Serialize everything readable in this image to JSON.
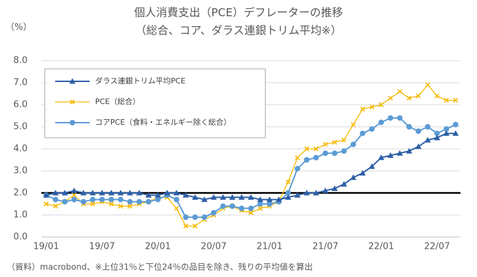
{
  "chart_data": {
    "type": "line",
    "title": "個人消費支出（PCE）デフレーターの推移",
    "subtitle": "（総合、コア、ダラス連銀トリム平均※）",
    "y_label": "（%）",
    "note": "（資料）macrobond、※上位31％と下位24％の品目を除き、残りの平均値を算出",
    "categories": [
      "19/01",
      null,
      null,
      null,
      null,
      null,
      "19/07",
      null,
      null,
      null,
      null,
      null,
      "20/01",
      null,
      null,
      null,
      null,
      null,
      "20/07",
      null,
      null,
      null,
      null,
      null,
      "21/01",
      null,
      null,
      null,
      null,
      null,
      "21/07",
      null,
      null,
      null,
      null,
      null,
      "22/01",
      null,
      null,
      null,
      null,
      null,
      "22/07",
      null,
      null
    ],
    "series": [
      {
        "name": "ダラス連銀トリム平均PCE",
        "color": "#2e5fa8",
        "marker": "triangle",
        "values": [
          1.9,
          2.0,
          2.0,
          2.1,
          2.0,
          2.0,
          2.0,
          2.0,
          2.0,
          2.0,
          2.0,
          1.9,
          1.9,
          2.0,
          2.0,
          1.9,
          1.8,
          1.7,
          1.8,
          1.8,
          1.8,
          1.8,
          1.8,
          1.7,
          1.7,
          1.7,
          1.8,
          1.9,
          2.0,
          2.0,
          2.1,
          2.2,
          2.4,
          2.7,
          2.9,
          3.2,
          3.6,
          3.7,
          3.8,
          3.9,
          4.1,
          4.4,
          4.5,
          4.7,
          4.7
        ]
      },
      {
        "name": "PCE（総合）",
        "color": "#f5b800",
        "marker": "x",
        "values": [
          1.5,
          1.4,
          1.6,
          1.9,
          1.5,
          1.5,
          1.6,
          1.5,
          1.4,
          1.4,
          1.5,
          1.6,
          1.8,
          1.8,
          1.3,
          0.5,
          0.5,
          0.8,
          1.0,
          1.3,
          1.4,
          1.2,
          1.1,
          1.3,
          1.4,
          1.6,
          2.5,
          3.6,
          4.0,
          4.0,
          4.2,
          4.3,
          4.4,
          5.1,
          5.8,
          5.9,
          6.0,
          6.3,
          6.6,
          6.3,
          6.4,
          6.9,
          6.4,
          6.2,
          6.2
        ]
      },
      {
        "name": "コアPCE（食料・エネルギー除く総合）",
        "color": "#5b9bd5",
        "marker": "circle",
        "values": [
          1.9,
          1.7,
          1.6,
          1.7,
          1.6,
          1.7,
          1.7,
          1.7,
          1.7,
          1.6,
          1.6,
          1.6,
          1.7,
          1.9,
          1.7,
          0.9,
          0.9,
          0.9,
          1.1,
          1.4,
          1.4,
          1.3,
          1.3,
          1.5,
          1.5,
          1.6,
          2.0,
          3.1,
          3.5,
          3.6,
          3.8,
          3.8,
          3.9,
          4.2,
          4.7,
          4.9,
          5.2,
          5.4,
          5.4,
          5.0,
          4.8,
          5.0,
          4.7,
          4.9,
          5.1
        ]
      }
    ],
    "reference_line": 2,
    "ylim": [
      0,
      8
    ],
    "yticks": [
      {
        "value": 0,
        "label": "0.0"
      },
      {
        "value": 1,
        "label": "1.0"
      },
      {
        "value": 2,
        "label": "2.0"
      },
      {
        "value": 3,
        "label": "3.0"
      },
      {
        "value": 4,
        "label": "4.0"
      },
      {
        "value": 5,
        "label": "5.0"
      },
      {
        "value": 6,
        "label": "6.0"
      },
      {
        "value": 7,
        "label": "7.0"
      },
      {
        "value": 8,
        "label": "8.0"
      }
    ],
    "grid": true,
    "legend": "upper left"
  }
}
